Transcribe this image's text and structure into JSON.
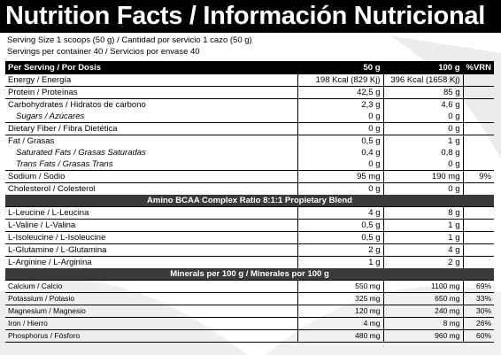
{
  "title": "Nutrition Facts / Información Nutricional",
  "serving": [
    "Serving Size 1 scoops (50 g) / Cantidad por servicio 1 cazo (50 g)",
    "Servings per container 40 / Servicios por envase 40"
  ],
  "header": [
    "Per Serving / Por Dosis",
    "50 g",
    "100 g",
    "%VRN"
  ],
  "sections": [
    {
      "rows": [
        {
          "cells": [
            "Energy / Energía",
            "198 Kcal (829 Kj)",
            "396 Kcal (1658 Kj)"
          ]
        },
        {
          "cells": [
            "Protein / Proteínas",
            "42,5 g",
            "85 g"
          ]
        },
        {
          "cells": [
            "Carbohydrates / Hidratos de carbono",
            "2,3 g",
            "4,6 g"
          ]
        },
        {
          "cells": [
            "Sugars / Azúcares",
            "0 g",
            "0 g"
          ],
          "italic": true
        },
        {
          "cells": [
            "Dietary Fiber / Fibra Dietética",
            "0 g",
            "0 g"
          ]
        },
        {
          "cells": [
            "Fat / Grasas",
            "0,5 g",
            "1 g"
          ]
        },
        {
          "cells": [
            "Saturated Fats / Grasas Saturadas",
            "0,4 g",
            "0,8 g"
          ],
          "italic": true
        },
        {
          "cells": [
            "Trans Fats / Grasas Trans",
            "0 g",
            "0 g"
          ],
          "italic": true
        },
        {
          "cells": [
            "Sodium / Sodio",
            "95 mg",
            "190 mg",
            "9%"
          ]
        },
        {
          "cells": [
            "Cholesterol / Colesterol",
            "0 g",
            "0 g"
          ]
        }
      ]
    },
    {
      "heading": "Amino BCAA Complex Ratio 8:1:1 Propietary Blend",
      "rows": [
        {
          "cells": [
            "L-Leucine / L-Leucina",
            "4 g",
            "8 g"
          ]
        },
        {
          "cells": [
            "L-Valine / L-Valina",
            "0,5 g",
            "1 g"
          ]
        },
        {
          "cells": [
            "L-Isoleucine / L-Isoleucine",
            "0,5 g",
            "1 g"
          ]
        },
        {
          "cells": [
            "L-Glutamine / L-Glutamina",
            "2 g",
            "4 g"
          ]
        },
        {
          "cells": [
            "L-Arginine / L-Arginina",
            "1 g",
            "2 g"
          ]
        }
      ]
    },
    {
      "heading": "Minerals per 100 g / Minerales por 100 g",
      "small": true,
      "rows": [
        {
          "cells": [
            "Calcium / Calcio",
            "550 mg",
            "1100 mg",
            "69%"
          ]
        },
        {
          "cells": [
            "Potassium / Potasio",
            "325 mg",
            "650 mg",
            "33%"
          ]
        },
        {
          "cells": [
            "Magnesium / Magnesio",
            "120 mg",
            "240 mg",
            "30%"
          ]
        },
        {
          "cells": [
            "Iron / Hierro",
            "4 mg",
            "8 mg",
            "26%"
          ]
        },
        {
          "cells": [
            "Phosphorus / Fósforo",
            "480 mg",
            "960 mg",
            "60%"
          ]
        }
      ]
    }
  ]
}
